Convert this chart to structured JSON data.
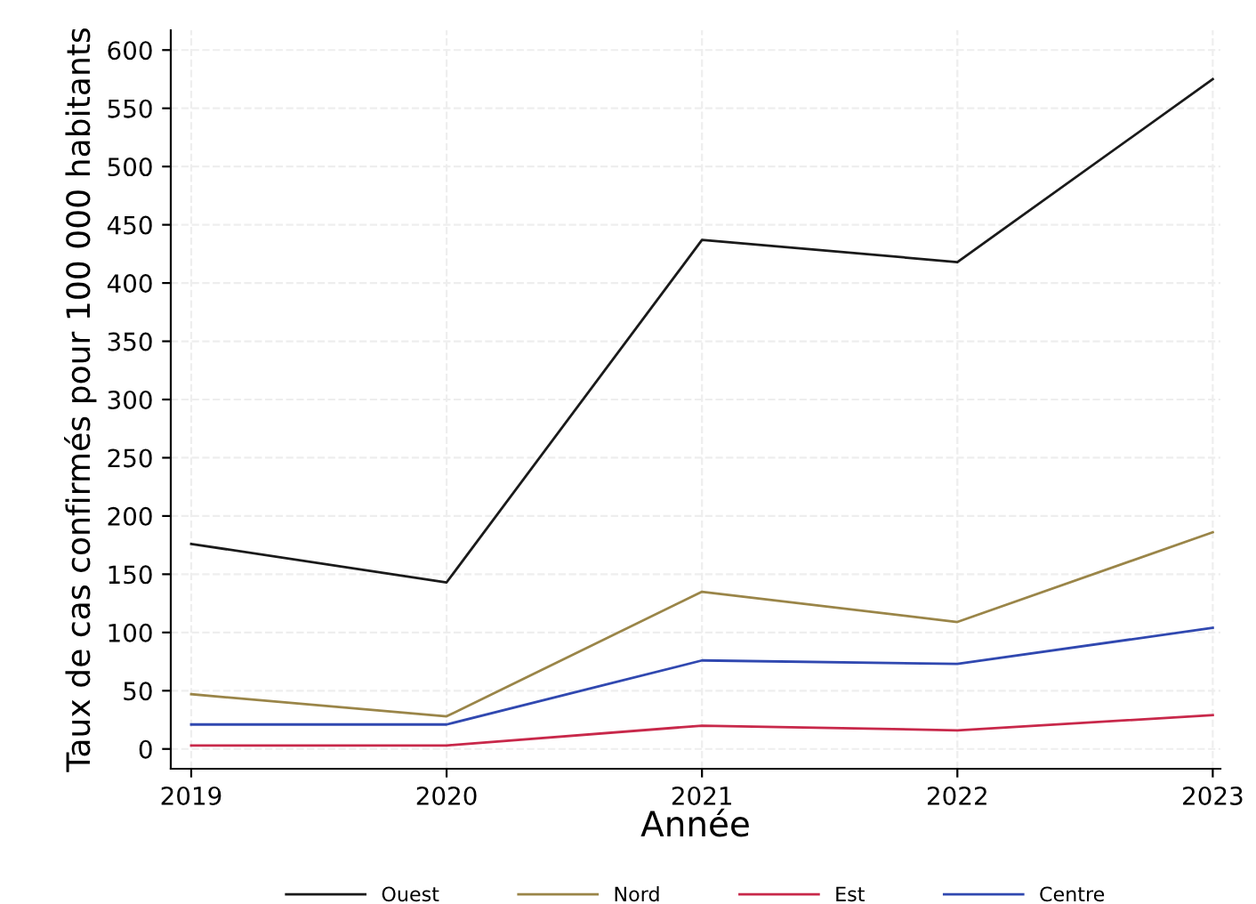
{
  "chart_data": {
    "type": "line",
    "xlabel": "Année",
    "ylabel": "Taux de cas confirmés pour 100 000 habitants",
    "x": [
      2019,
      2020,
      2021,
      2022,
      2023
    ],
    "series": [
      {
        "name": "Ouest",
        "color": "#1a1a1a",
        "values": [
          176,
          143,
          437,
          418,
          575
        ]
      },
      {
        "name": "Nord",
        "color": "#9a8548",
        "values": [
          47,
          28,
          135,
          109,
          186
        ]
      },
      {
        "name": "Est",
        "color": "#c8284a",
        "values": [
          3,
          3,
          20,
          16,
          29
        ]
      },
      {
        "name": "Centre",
        "color": "#3048b0",
        "values": [
          21,
          21,
          76,
          73,
          104
        ]
      }
    ],
    "xlim": [
      2018.92,
      2023.03
    ],
    "ylim": [
      -17,
      617
    ],
    "xticks": [
      2019,
      2020,
      2021,
      2022,
      2023
    ],
    "yticks": [
      0,
      50,
      100,
      150,
      200,
      250,
      300,
      350,
      400,
      450,
      500,
      550,
      600
    ],
    "grid": true,
    "legend": "bottom",
    "marker": "none",
    "line_style": "solid"
  }
}
